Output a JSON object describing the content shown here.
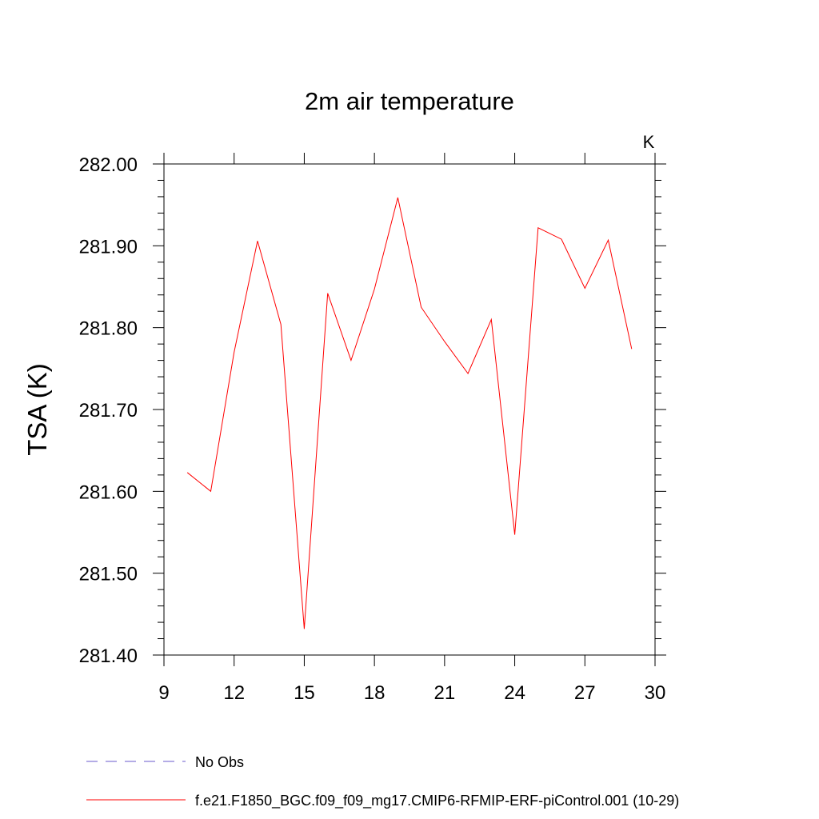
{
  "chart_data": {
    "type": "line",
    "title": "2m air temperature",
    "units_label": "K",
    "xlabel": "",
    "ylabel": "TSA  (K)",
    "xlim": [
      9,
      30
    ],
    "ylim": [
      281.4,
      282.0
    ],
    "x_ticks": [
      9,
      12,
      15,
      18,
      21,
      24,
      27,
      30
    ],
    "x_tick_labels": [
      "9",
      "12",
      "15",
      "18",
      "21",
      "24",
      "27",
      "30"
    ],
    "y_ticks": [
      281.4,
      281.5,
      281.6,
      281.7,
      281.8,
      281.9,
      282.0
    ],
    "y_tick_labels": [
      "281.40",
      "281.50",
      "281.60",
      "281.70",
      "281.80",
      "281.90",
      "282.00"
    ],
    "grid": false,
    "legend_position": "bottom",
    "series": [
      {
        "name": "No Obs",
        "color": "#6a5acd",
        "dash": "dashed",
        "x": [],
        "values": []
      },
      {
        "name": "f.e21.F1850_BGC.f09_f09_mg17.CMIP6-RFMIP-ERF-piControl.001 (10-29)",
        "color": "#ff0000",
        "dash": "solid",
        "x": [
          10,
          11,
          12,
          13,
          14,
          15,
          16,
          17,
          18,
          19,
          20,
          21,
          22,
          23,
          24,
          25,
          26,
          27,
          28,
          29
        ],
        "values": [
          281.623,
          281.6,
          281.77,
          281.906,
          281.804,
          281.432,
          281.842,
          281.76,
          281.847,
          281.959,
          281.825,
          281.783,
          281.744,
          281.81,
          281.547,
          281.922,
          281.908,
          281.848,
          281.907,
          281.774
        ]
      }
    ]
  }
}
